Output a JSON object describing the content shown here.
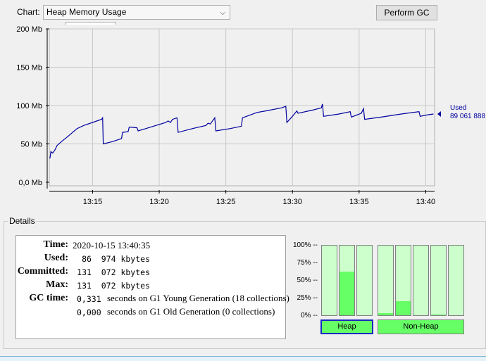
{
  "toolbar": {
    "chart_label": "Chart:",
    "selected_chart": "Heap Memory Usage",
    "gc_button": "Perform GC"
  },
  "chart_data": {
    "type": "line",
    "title": "",
    "xlabel": "",
    "ylabel": "",
    "y_unit": "Mb",
    "y_ticks": [
      "0,0 Mb",
      "50 Mb",
      "100 Mb",
      "150 Mb",
      "200 Mb"
    ],
    "x_ticks": [
      "13:15",
      "13:20",
      "13:25",
      "13:30",
      "13:35",
      "13:40"
    ],
    "ylim": [
      0,
      200
    ],
    "xlim": [
      "13:11:45",
      "13:40:40"
    ],
    "grid": true,
    "series": [
      {
        "name": "Used",
        "color": "#0000a0",
        "points": [
          [
            "13:11:48",
            31
          ],
          [
            "13:11:52",
            40
          ],
          [
            "13:12:00",
            38
          ],
          [
            "13:12:10",
            42
          ],
          [
            "13:12:20",
            48
          ],
          [
            "13:12:40",
            53
          ],
          [
            "13:13:10",
            60
          ],
          [
            "13:13:30",
            65
          ],
          [
            "13:13:50",
            70
          ],
          [
            "13:14:20",
            74
          ],
          [
            "13:15:00",
            78
          ],
          [
            "13:15:40",
            82
          ],
          [
            "13:15:45",
            84
          ],
          [
            "13:15:48",
            50
          ],
          [
            "13:16:30",
            53
          ],
          [
            "13:17:10",
            57
          ],
          [
            "13:17:15",
            65
          ],
          [
            "13:17:40",
            66
          ],
          [
            "13:17:45",
            72
          ],
          [
            "13:18:20",
            71
          ],
          [
            "13:18:25",
            67
          ],
          [
            "13:19:00",
            70
          ],
          [
            "13:19:45",
            74
          ],
          [
            "13:20:30",
            78
          ],
          [
            "13:20:40",
            80
          ],
          [
            "13:20:50",
            78
          ],
          [
            "13:21:00",
            82
          ],
          [
            "13:21:20",
            84
          ],
          [
            "13:21:25",
            65
          ],
          [
            "13:22:30",
            70
          ],
          [
            "13:23:30",
            74
          ],
          [
            "13:23:40",
            77
          ],
          [
            "13:23:50",
            76
          ],
          [
            "13:24:00",
            80
          ],
          [
            "13:24:10",
            84
          ],
          [
            "13:24:15",
            67
          ],
          [
            "13:25:20",
            70
          ],
          [
            "13:26:10",
            73
          ],
          [
            "13:26:15",
            84
          ],
          [
            "13:27:20",
            91
          ],
          [
            "13:28:00",
            93
          ],
          [
            "13:29:10",
            97
          ],
          [
            "13:29:30",
            99
          ],
          [
            "13:29:35",
            78
          ],
          [
            "13:30:00",
            86
          ],
          [
            "13:30:20",
            93
          ],
          [
            "13:30:25",
            90
          ],
          [
            "13:31:30",
            94
          ],
          [
            "13:32:10",
            97
          ],
          [
            "13:32:15",
            102
          ],
          [
            "13:32:20",
            86
          ],
          [
            "13:33:30",
            89
          ],
          [
            "13:34:20",
            92
          ],
          [
            "13:34:25",
            85
          ],
          [
            "13:35:10",
            90
          ],
          [
            "13:35:20",
            96
          ],
          [
            "13:35:25",
            82
          ],
          [
            "13:36:40",
            85
          ],
          [
            "13:38:10",
            89
          ],
          [
            "13:39:30",
            92
          ],
          [
            "13:39:35",
            86
          ],
          [
            "13:40:10",
            88
          ],
          [
            "13:40:35",
            89
          ]
        ]
      }
    ],
    "legend": {
      "position": "right",
      "label": "Used",
      "value": "89 061 888"
    }
  },
  "details": {
    "title": "Details",
    "labels": {
      "time": "Time:",
      "used": "Used:",
      "committed": "Committed:",
      "max": "Max:",
      "gc_time": "GC time:"
    },
    "time": "2020-10-15 13:40:35",
    "used": "86  974 kbytes",
    "committed": "131  072 kbytes",
    "max": "131  072 kbytes",
    "gc": [
      {
        "value": "0,331",
        "text": "seconds on G1 Young Generation (18 collections)"
      },
      {
        "value": "0,000",
        "text": "seconds on G1 Old Generation (0 collections)"
      }
    ]
  },
  "pools": {
    "percent_labels": [
      "100% --",
      "75% --",
      "50% --",
      "25% --",
      "0% --"
    ],
    "heap_bars": [
      0.0,
      0.63,
      0.0
    ],
    "nonheap_bars": [
      0.03,
      0.2,
      0.0,
      0.01
    ],
    "heap_button": "Heap",
    "nonheap_button": "Non-Heap",
    "color_used": "#66ff66",
    "color_free": "#ccffcc"
  }
}
